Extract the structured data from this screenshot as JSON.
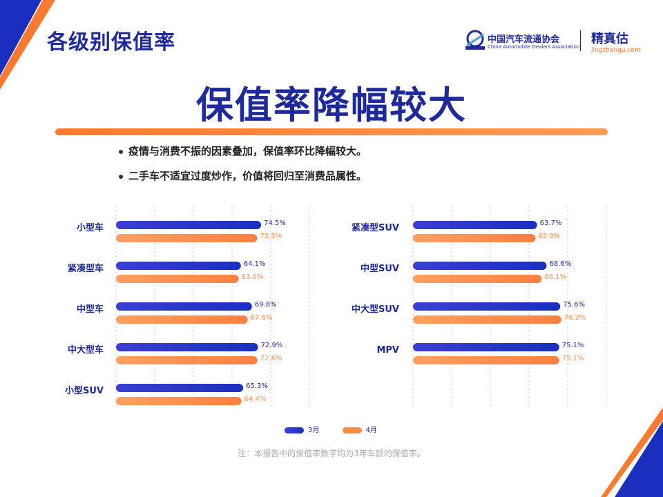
{
  "page_title": "各级别保值率",
  "logos": {
    "cada_cn": "中国汽车流通协会",
    "cada_en": "China Automobile Dealers Association",
    "jzg_cn": "精真估",
    "jzg_url": "jingzhengu.com"
  },
  "headline": "保值率降幅较大",
  "bullets": [
    "疫情与消费不振的因素叠加，保值率环比降幅较大。",
    "二手车不适宜过度炒作，价值将回归至消费品属性。"
  ],
  "colors": {
    "march": "#1a2fc0",
    "april": "#ff8c45",
    "brand": "#1e2a9c"
  },
  "chart_data": [
    {
      "type": "bar",
      "orientation": "horizontal",
      "categories": [
        "小型车",
        "紧凑型车",
        "中型车",
        "中大型车",
        "小型SUV"
      ],
      "series": [
        {
          "name": "3月",
          "values": [
            74.5,
            64.1,
            69.8,
            72.9,
            65.3
          ],
          "labels": [
            "74.5%",
            "64.1%",
            "69.8%",
            "72.9%",
            "65.3%"
          ]
        },
        {
          "name": "4月",
          "values": [
            72.5,
            63.0,
            67.6,
            72.6,
            64.4
          ],
          "labels": [
            "72.5%",
            "63.0%",
            "67.6%",
            "72.6%",
            "64.4%"
          ]
        }
      ],
      "xlim": [
        0,
        100
      ],
      "grid": true
    },
    {
      "type": "bar",
      "orientation": "horizontal",
      "categories": [
        "紧凑型SUV",
        "中型SUV",
        "中大型SUV",
        "MPV"
      ],
      "series": [
        {
          "name": "3月",
          "values": [
            63.7,
            68.6,
            75.6,
            75.1
          ],
          "labels": [
            "63.7%",
            "68.6%",
            "75.6%",
            "75.1%"
          ]
        },
        {
          "name": "4月",
          "values": [
            62.9,
            66.1,
            76.2,
            75.1
          ],
          "labels": [
            "62.9%",
            "66.1%",
            "76.2%",
            "75.1%"
          ]
        }
      ],
      "xlim": [
        0,
        100
      ],
      "grid": true
    }
  ],
  "legend": [
    "3月",
    "4月"
  ],
  "note": "注：本报告中的保值率数字均为3年车龄的保值率。"
}
